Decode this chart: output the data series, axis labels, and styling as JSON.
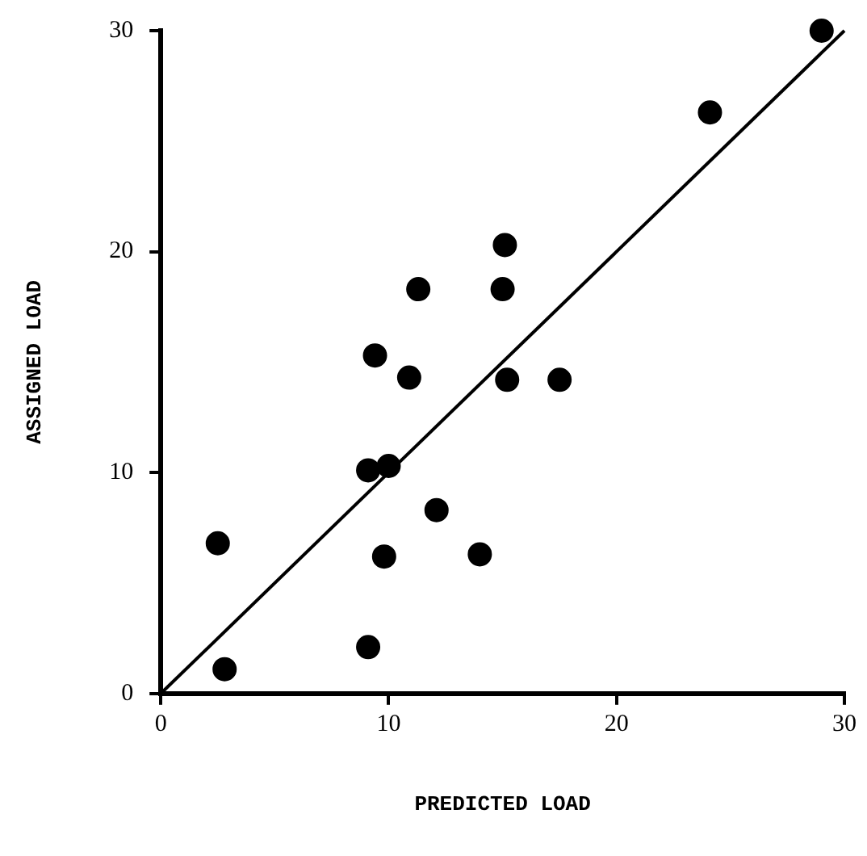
{
  "chart_data": {
    "type": "scatter",
    "xlabel": "PREDICTED LOAD",
    "ylabel": "ASSIGNED LOAD",
    "xlim": [
      0,
      30
    ],
    "ylim": [
      0,
      30
    ],
    "xticks": [
      0,
      10,
      20,
      30
    ],
    "yticks": [
      0,
      10,
      20,
      30
    ],
    "grid": false,
    "legend": false,
    "marker": "circle",
    "series": [
      {
        "color": "#000000",
        "x": [
          15.1,
          15.0,
          11.3,
          9.4,
          10.9,
          15.2,
          17.5,
          9.1,
          10.0,
          12.1,
          2.5,
          9.8,
          14.0,
          9.1,
          2.8,
          24.1,
          29.0
        ],
        "values": [
          20.3,
          18.3,
          18.3,
          15.3,
          14.3,
          14.2,
          14.2,
          10.1,
          10.3,
          8.3,
          6.8,
          6.2,
          6.3,
          2.1,
          1.1,
          26.3,
          30.0
        ]
      },
      {
        "type": "line",
        "color": "#000000",
        "marker": "none",
        "x": [
          0,
          30
        ],
        "values": [
          0,
          30
        ]
      }
    ]
  }
}
